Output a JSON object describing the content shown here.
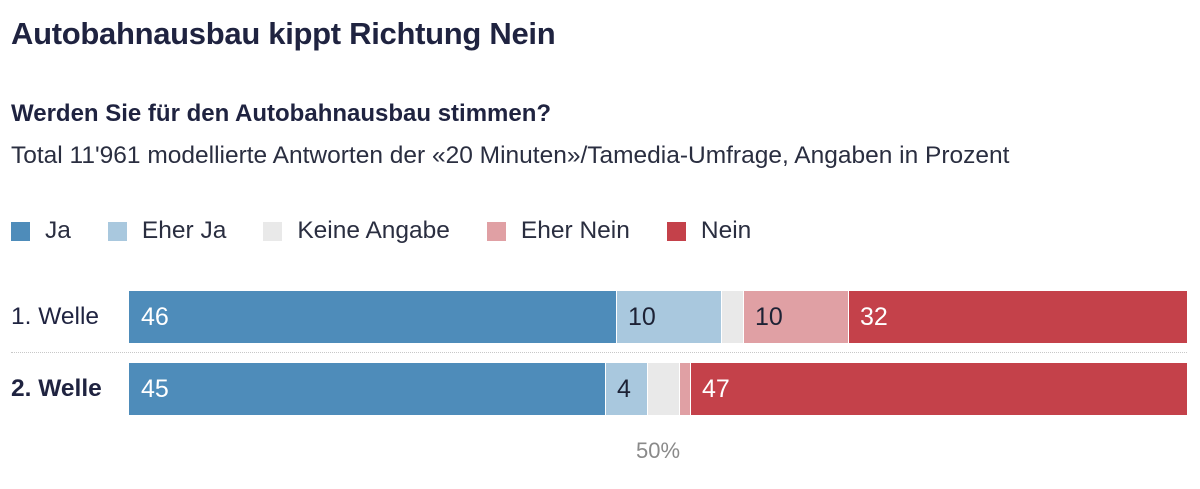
{
  "title": "Autobahnausbau kippt Richtung Nein",
  "question": "Werden Sie für den Autobahnausbau stimmen?",
  "subtitle": "Total 11'961 modellierte Antworten der «20 Minuten»/Tamedia-Umfrage, Angaben in Prozent",
  "chart_data": {
    "type": "bar",
    "orientation": "horizontal",
    "stacked": true,
    "xlim": [
      0,
      100
    ],
    "categories": [
      "1. Welle",
      "2. Welle"
    ],
    "series": [
      {
        "name": "Ja",
        "color": "#4e8cba",
        "values": [
          46,
          45
        ],
        "labels": [
          "46",
          "45"
        ],
        "label_color": "#ffffff"
      },
      {
        "name": "Eher Ja",
        "color": "#a9c8de",
        "values": [
          10,
          4
        ],
        "labels": [
          "10",
          "4"
        ],
        "label_color": "#1d2235"
      },
      {
        "name": "Keine Angabe",
        "color": "#e9e9e9",
        "values": [
          2,
          3
        ],
        "labels": [
          "",
          ""
        ],
        "label_color": "#1d2235"
      },
      {
        "name": "Eher Nein",
        "color": "#e0a0a4",
        "values": [
          10,
          1
        ],
        "labels": [
          "10",
          ""
        ],
        "label_color": "#1d2235"
      },
      {
        "name": "Nein",
        "color": "#c4414a",
        "values": [
          32,
          47
        ],
        "labels": [
          "32",
          "47"
        ],
        "label_color": "#ffffff"
      }
    ],
    "reference_line": {
      "value": 50,
      "label": "50%"
    }
  }
}
